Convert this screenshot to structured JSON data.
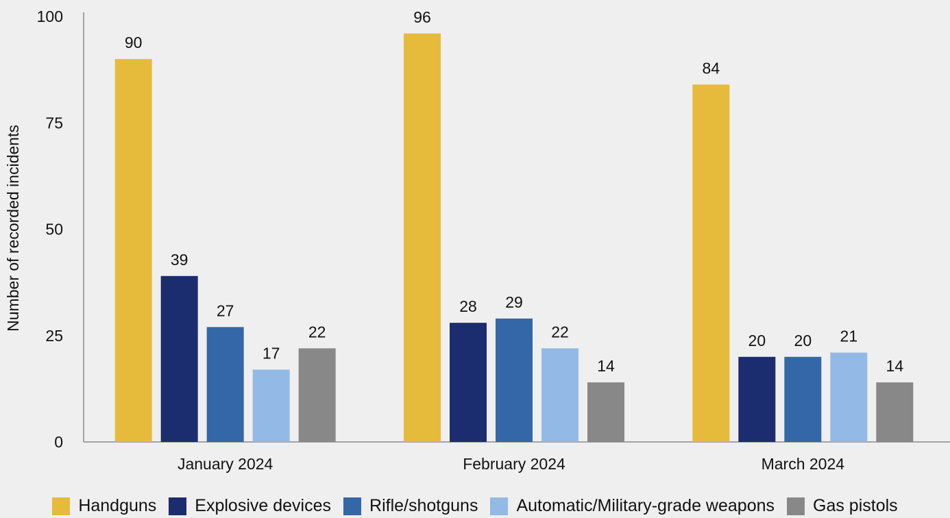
{
  "chart_data": {
    "type": "bar",
    "title": "",
    "xlabel": "",
    "ylabel": "Number of recorded incidents",
    "ylim": [
      0,
      100
    ],
    "yticks": [
      "0",
      "25",
      "50",
      "75",
      "100"
    ],
    "grid": false,
    "legend_position": "bottom",
    "categories": [
      "January 2024",
      "February 2024",
      "March 2024"
    ],
    "series": [
      {
        "name": "Handguns",
        "color": "#e6bb3c",
        "values": [
          90,
          96,
          84
        ],
        "labels": [
          "90",
          "96",
          "84"
        ]
      },
      {
        "name": "Explosive devices",
        "color": "#1b2d6e",
        "values": [
          39,
          28,
          20
        ],
        "labels": [
          "39",
          "28",
          "20"
        ]
      },
      {
        "name": "Rifle/shotguns",
        "color": "#3467a8",
        "values": [
          27,
          29,
          20
        ],
        "labels": [
          "27",
          "29",
          "20"
        ]
      },
      {
        "name": "Automatic/Military-grade weapons",
        "color": "#93b9e6",
        "values": [
          17,
          22,
          21
        ],
        "labels": [
          "17",
          "22",
          "21"
        ]
      },
      {
        "name": "Gas pistols",
        "color": "#888888",
        "values": [
          22,
          14,
          14
        ],
        "labels": [
          "22",
          "14",
          "14"
        ]
      }
    ]
  }
}
